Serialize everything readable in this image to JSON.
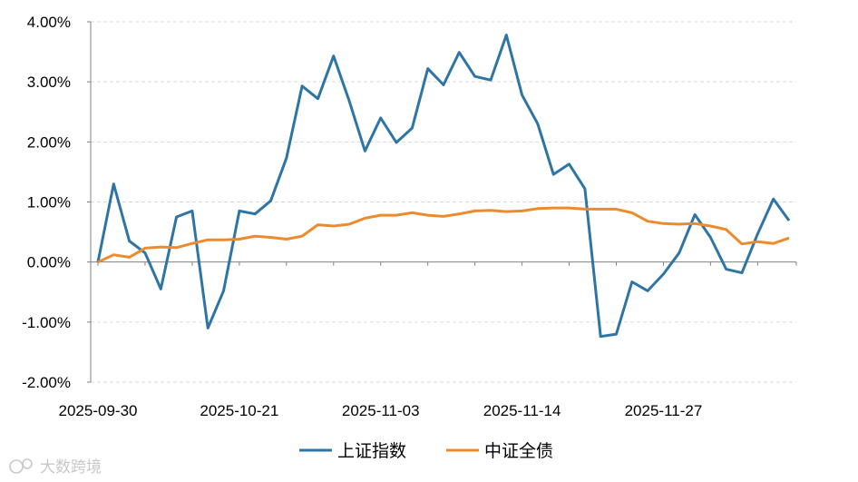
{
  "chart_data": {
    "type": "line",
    "title": "",
    "xlabel": "",
    "ylabel": "",
    "ylim": [
      -0.02,
      0.04
    ],
    "yticks": [
      "4.00%",
      "3.00%",
      "2.00%",
      "1.00%",
      "0.00%",
      "-1.00%",
      "-2.00%"
    ],
    "xtick_labels": [
      "2025-09-30",
      "2025-10-21",
      "2025-11-03",
      "2025-11-14",
      "2025-11-27"
    ],
    "xtick_index": [
      0,
      9,
      18,
      27,
      36
    ],
    "grid": true,
    "legend_position": "bottom",
    "series": [
      {
        "name": "上证指数",
        "color": "#2e75a6",
        "values": [
          0.0,
          1.3,
          0.35,
          0.15,
          -0.45,
          0.75,
          0.85,
          -1.1,
          -0.48,
          0.85,
          0.8,
          1.02,
          1.73,
          2.93,
          2.72,
          3.43,
          2.68,
          1.85,
          2.4,
          1.99,
          2.23,
          3.22,
          2.95,
          3.49,
          3.09,
          3.03,
          3.78,
          2.78,
          2.3,
          1.46,
          1.63,
          1.22,
          -1.24,
          -1.2,
          -0.33,
          -0.48,
          -0.2,
          0.15,
          0.79,
          0.41,
          -0.12,
          -0.18,
          0.47,
          1.05,
          0.69
        ]
      },
      {
        "name": "中证全债",
        "color": "#ed8a2b",
        "values": [
          0.0,
          0.12,
          0.08,
          0.23,
          0.25,
          0.24,
          0.31,
          0.37,
          0.37,
          0.38,
          0.43,
          0.41,
          0.38,
          0.43,
          0.62,
          0.6,
          0.63,
          0.73,
          0.78,
          0.78,
          0.82,
          0.78,
          0.76,
          0.8,
          0.85,
          0.86,
          0.84,
          0.85,
          0.89,
          0.9,
          0.9,
          0.88,
          0.88,
          0.88,
          0.82,
          0.68,
          0.64,
          0.63,
          0.64,
          0.6,
          0.54,
          0.3,
          0.34,
          0.31,
          0.4
        ]
      }
    ]
  },
  "watermark": {
    "text": "大数跨境"
  }
}
